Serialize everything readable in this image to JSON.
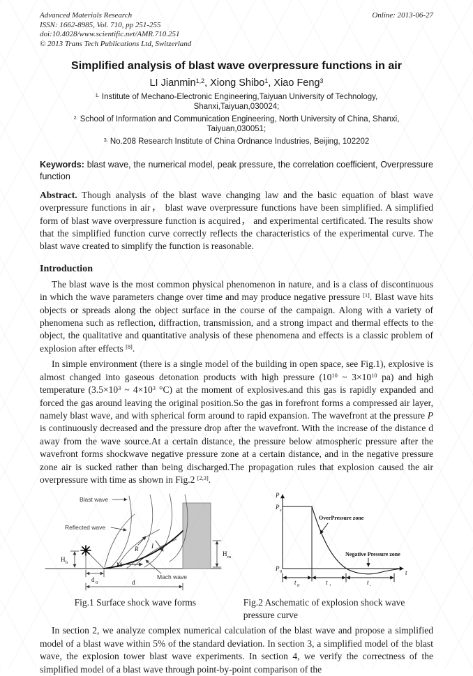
{
  "header": {
    "journal": "Advanced Materials Research",
    "issn_line": "ISSN: 1662-8985, Vol. 710, pp 251-255",
    "doi_line": "doi:10.4028/www.scientific.net/AMR.710.251",
    "copyright_line": "© 2013 Trans Tech Publications Ltd, Switzerland",
    "online_date": "Online: 2013-06-27"
  },
  "title": "Simplified analysis of blast wave overpressure functions in air",
  "authors_rich": [
    {
      "t": "LI Jianmin"
    },
    {
      "t": "1,2",
      "s": "sup"
    },
    {
      "t": ", Xiong Shibo"
    },
    {
      "t": "1",
      "s": "sup"
    },
    {
      "t": ", Xiao Feng"
    },
    {
      "t": "3",
      "s": "sup"
    }
  ],
  "affiliations": [
    [
      {
        "t": "1.",
        "s": "sup"
      },
      {
        "t": " Institute of Mechano-Electronic Engineering,Taiyuan University of Technology, Shanxi,Taiyuan,030024;"
      }
    ],
    [
      {
        "t": "2.",
        "s": "sup"
      },
      {
        "t": " School of Information and Communication Engineering, North University of China, Shanxi, Taiyuan,030051;"
      }
    ],
    [
      {
        "t": "3.",
        "s": "sup"
      },
      {
        "t": " No.208 Research Institute of China Ordnance Industries, Beijing, 102202"
      }
    ]
  ],
  "keywords": {
    "label": "Keywords:",
    "text": "blast wave, the numerical model, peak pressure, the correlation coefficient, Overpressure function"
  },
  "abstract": {
    "label": "Abstract.",
    "text": "Though analysis of the blast wave changing law and the basic equation of blast wave overpressure functions in air， blast wave overpressure functions have been simplified. A simplified form of blast wave overpressure function is acquired， and experimental certificated. The results show that the simplified function curve correctly reflects the characteristics of the experimental curve. The blast wave created to simplify the function is reasonable."
  },
  "sections": {
    "introduction": {
      "heading": "Introduction",
      "para1": [
        {
          "t": "The blast wave is the most common physical phenomenon in nature, and is a class of discontinuous in which the wave parameters change over time and may produce negative pressure "
        },
        {
          "t": "[1]",
          "s": "sup"
        },
        {
          "t": ". Blast wave hits objects or spreads along the object surface in the course of the campaign. Along with a variety of phenomena such as reflection, diffraction, transmission, and a strong impact and thermal effects to the object, the qualitative and quantitative analysis of these phenomena and effects is a classic problem of explosion after effects "
        },
        {
          "t": "[8]",
          "s": "sup"
        },
        {
          "t": "."
        }
      ],
      "para2": [
        {
          "t": "In simple environment (there is a single model of the building in open space, see Fig.1), explosive is almost changed into gaseous detonation products with high pressure (10"
        },
        {
          "t": "10",
          "s": "sup"
        },
        {
          "t": " ~ 3×10"
        },
        {
          "t": "10",
          "s": "sup"
        },
        {
          "t": " pa) and high temperature (3.5×10"
        },
        {
          "t": "3",
          "s": "sup"
        },
        {
          "t": " ~ 4×10"
        },
        {
          "t": "3",
          "s": "sup"
        },
        {
          "t": " °C) at the moment of explosives.and this gas is rapidly expanded and forced the gas around leaving the original position.So the gas in forefront forms a compressed air layer, namely blast wave, and with spherical form around to rapid expansion. The wavefront at the pressure "
        },
        {
          "t": "P",
          "s": "i"
        },
        {
          "t": " is continuously decreased and the pressure drop after the wavefront. With the increase of the distance d away from the wave source.At a certain distance, the pressure below atmospheric pressure after the wavefront forms shockwave negative pressure zone at a certain distance, and in the negative pressure zone air is sucked rather than being discharged.The propagation rules that explosion caused the air overpressure with time as shown in Fig.2 "
        },
        {
          "t": "[2,3]",
          "s": "sup"
        },
        {
          "t": "."
        }
      ]
    }
  },
  "closing_para": "In section 2, we analyze complex numerical calculation of the blast wave and propose a simplified model of a blast wave within 5% of the standard deviation. In section 3, a simplified model of the blast wave, the explosion tower blast wave experiments. In section 4, we verify the correctness of the simplified model of a blast wave through point-by-point comparison of the",
  "figures": {
    "fig1": {
      "caption": "Fig.1 Surface shock wave forms",
      "labels": {
        "blast_wave": "Blast wave",
        "reflected_wave": "Reflected wave",
        "mach_wave": "Mach wave",
        "r": "R",
        "i": "I",
        "m": "M",
        "hb_main": "H",
        "hb_sub": "b",
        "d0_main": "d",
        "d0_sub": "0",
        "d": "d",
        "hm_main": "H",
        "hm_sub": "m"
      }
    },
    "fig2": {
      "caption": "Fig.2 Aschematic of explosion shock wave pressure curve",
      "labels": {
        "p_axis": "P",
        "t_axis": "t",
        "ps_main": "P",
        "ps_sub": "s",
        "p0_main": "P",
        "p0_sub": "0",
        "t0_main": "t",
        "t0_sub": "0",
        "tpos_main": "t",
        "tpos_sub": "+",
        "tneg_main": "t",
        "tneg_sub": "-",
        "overpressure_zone": "OverPressure zone",
        "negative_zone": "Negative Pressure zone"
      }
    }
  },
  "colors": {
    "building_fill": "#c6c6c6",
    "building_stroke": "#777777",
    "line": "#333333",
    "text": "#1b1b1b"
  }
}
